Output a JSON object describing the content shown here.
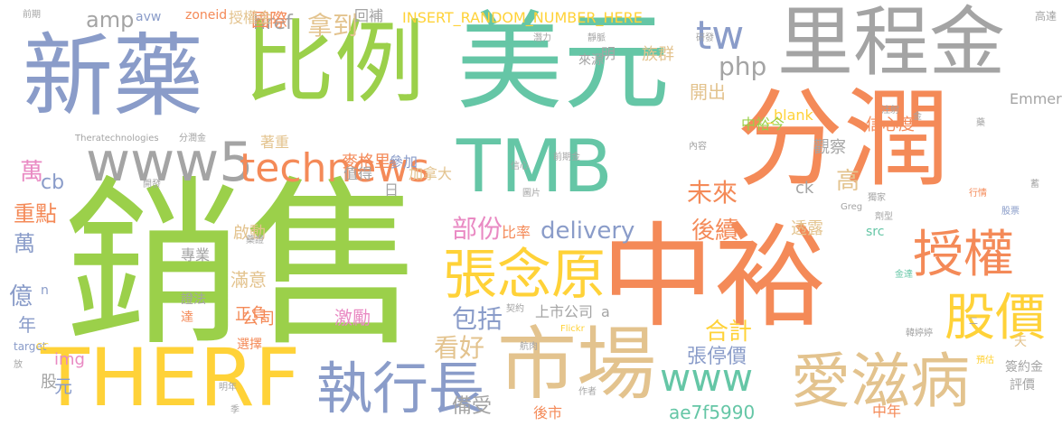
{
  "words": [
    "銷售",
    "中裕",
    "分潤",
    "美元",
    "TMB",
    "里程金",
    "比例",
    "新藥",
    "THERF",
    "市場",
    "www5",
    "愛滋病",
    "執行長",
    "張念原",
    "授權",
    "股價",
    "technews",
    "tw",
    "www",
    "php",
    "拿到",
    "delivery",
    "後續",
    "未來",
    "高",
    "部份",
    "包括",
    "看好",
    "合計",
    "張停價",
    "ae7f5990",
    "億",
    "重點",
    "萬",
    "cb",
    "amp",
    "href",
    "開出",
    "年",
    "元",
    "股",
    "激勵",
    "滿意",
    "正負",
    "ck",
    "觀察",
    "透露",
    "信心度",
    "備受",
    "說會",
    "國際",
    "INSERT_RANDOM_NUMBER_HERE",
    "回補",
    "授權金",
    "avw",
    "zoneid",
    "族群",
    "明",
    "來源",
    "_blank",
    "中裕今",
    "Emmerich",
    "麥格里",
    "參加",
    "值得",
    "著重",
    "日",
    "加拿大",
    "專業",
    "啟動",
    "a",
    "上市公司",
    "後市",
    "比率",
    "達",
    "選擇",
    "證法",
    "公司",
    "img",
    "n",
    "target",
    "中年",
    "src",
    "天",
    "評價",
    "簽約金",
    "高達",
    "前期",
    "潛力",
    "靜脈",
    "研發",
    "Theratechnologies",
    "分潤金",
    "開發",
    "信心",
    "前期金",
    "圖片",
    "內容",
    "Greg",
    "行情",
    "契約",
    "Flickr",
    "作者",
    "航肉",
    "二",
    "股票",
    "預估",
    "劑型",
    "注射",
    "放",
    "CC",
    "明年",
    "季",
    "獨家",
    "藥證",
    "韓婷婷",
    "金",
    "藥",
    "蓄",
    "金達"
  ],
  "colors": {
    "green": "#9bd04a",
    "orange": "#f48a58",
    "blue": "#8a9cc9",
    "gray": "#a4a4a4",
    "teal": "#65c6a6",
    "yellow": "#ffd238",
    "tan": "#e3c38e",
    "pink": "#e98ac3"
  }
}
